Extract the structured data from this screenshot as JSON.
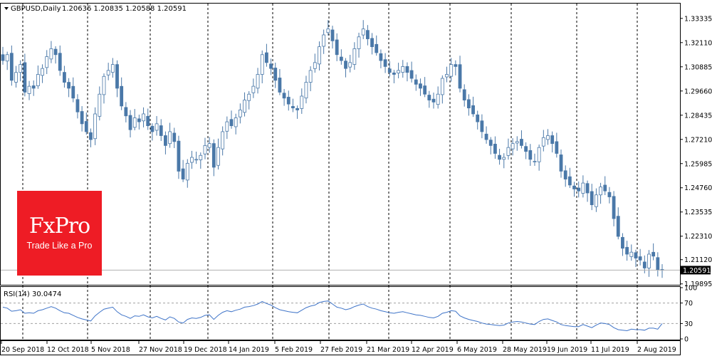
{
  "header": {
    "symbol": "GBPUSD,Daily",
    "ohlc": "1.20636 1.20835 1.20588 1.20591"
  },
  "rsi_header": {
    "label": "RSI(14) 30.0474"
  },
  "logo": {
    "wordmark": "FxPro",
    "tagline": "Trade Like a Pro",
    "color": "#ee1c25"
  },
  "colors": {
    "candle": "#4a78a8",
    "rsi_line": "#3f74c8",
    "grid": "#000000",
    "price_tag": "#000000"
  },
  "chart_data": [
    {
      "type": "candlestick",
      "title": "GBPUSD,Daily",
      "x_start": "2018-09-20",
      "x_end": "2019-08-09",
      "ylim": [
        1.19885,
        1.3405
      ],
      "y_ticks": [
        "1.33335",
        "1.32110",
        "1.30885",
        "1.29660",
        "1.28435",
        "1.27210",
        "1.25985",
        "1.24760",
        "1.23535",
        "1.22310",
        "1.21120",
        "1.19895"
      ],
      "last_price": "1.20591",
      "x_ticks": [
        "20 Sep 2018",
        "12 Oct 2018",
        "5 Nov 2018",
        "27 Nov 2018",
        "19 Dec 2018",
        "14 Jan 2019",
        "5 Feb 2019",
        "27 Feb 2019",
        "21 Mar 2019",
        "12 Apr 2019",
        "6 May 2019",
        "28 May 2019",
        "19 Jun 2019",
        "11 Jul 2019",
        "2 Aug 2019"
      ],
      "close_series": [
        1.312,
        1.315,
        1.302,
        1.306,
        1.31,
        1.296,
        1.299,
        1.298,
        1.305,
        1.308,
        1.314,
        1.318,
        1.315,
        1.307,
        1.301,
        1.298,
        1.293,
        1.286,
        1.28,
        1.276,
        1.272,
        1.285,
        1.295,
        1.304,
        1.307,
        1.31,
        1.298,
        1.289,
        1.284,
        1.277,
        1.283,
        1.281,
        1.285,
        1.279,
        1.276,
        1.28,
        1.274,
        1.269,
        1.276,
        1.271,
        1.256,
        1.252,
        1.26,
        1.263,
        1.262,
        1.264,
        1.269,
        1.27,
        1.258,
        1.268,
        1.276,
        1.281,
        1.279,
        1.283,
        1.287,
        1.292,
        1.295,
        1.299,
        1.305,
        1.315,
        1.311,
        1.308,
        1.302,
        1.296,
        1.293,
        1.29,
        1.288,
        1.287,
        1.294,
        1.301,
        1.307,
        1.311,
        1.319,
        1.325,
        1.328,
        1.322,
        1.315,
        1.312,
        1.308,
        1.311,
        1.318,
        1.324,
        1.328,
        1.323,
        1.319,
        1.316,
        1.312,
        1.309,
        1.306,
        1.305,
        1.307,
        1.309,
        1.306,
        1.303,
        1.3,
        1.298,
        1.295,
        1.292,
        1.291,
        1.295,
        1.303,
        1.305,
        1.31,
        1.309,
        1.298,
        1.292,
        1.288,
        1.285,
        1.281,
        1.276,
        1.272,
        1.269,
        1.265,
        1.262,
        1.263,
        1.268,
        1.27,
        1.271,
        1.269,
        1.266,
        1.262,
        1.261,
        1.268,
        1.273,
        1.274,
        1.27,
        1.265,
        1.256,
        1.252,
        1.249,
        1.247,
        1.246,
        1.25,
        1.245,
        1.239,
        1.244,
        1.248,
        1.246,
        1.243,
        1.232,
        1.223,
        1.217,
        1.214,
        1.215,
        1.212,
        1.211,
        1.207,
        1.214,
        1.213,
        1.206,
        1.2059
      ]
    },
    {
      "type": "line",
      "title": "RSI(14) 30.0474",
      "ylim": [
        0,
        100
      ],
      "y_ticks": [
        "100",
        "70",
        "30",
        "0"
      ],
      "levels": [
        70,
        30
      ],
      "values": [
        62,
        60,
        54,
        55,
        57,
        50,
        51,
        50,
        55,
        57,
        60,
        63,
        60,
        55,
        51,
        50,
        46,
        42,
        39,
        37,
        35,
        45,
        52,
        58,
        60,
        62,
        53,
        47,
        44,
        40,
        45,
        44,
        47,
        43,
        41,
        44,
        40,
        37,
        43,
        40,
        33,
        31,
        38,
        41,
        40,
        42,
        46,
        47,
        38,
        46,
        52,
        55,
        53,
        56,
        58,
        62,
        63,
        65,
        68,
        73,
        69,
        66,
        61,
        57,
        55,
        53,
        52,
        51,
        56,
        61,
        64,
        66,
        71,
        73,
        74,
        68,
        62,
        60,
        57,
        59,
        63,
        66,
        68,
        63,
        60,
        58,
        55,
        53,
        51,
        50,
        52,
        53,
        51,
        49,
        47,
        46,
        44,
        42,
        41,
        44,
        50,
        52,
        55,
        54,
        45,
        41,
        38,
        36,
        34,
        31,
        29,
        28,
        27,
        26,
        27,
        31,
        33,
        34,
        33,
        31,
        29,
        28,
        34,
        38,
        39,
        36,
        33,
        28,
        26,
        25,
        24,
        24,
        28,
        25,
        22,
        27,
        31,
        30,
        28,
        22,
        18,
        17,
        16,
        19,
        18,
        18,
        17,
        21,
        21,
        19,
        30
      ]
    }
  ]
}
